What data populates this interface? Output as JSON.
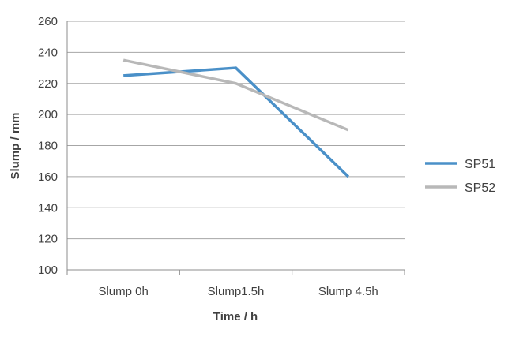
{
  "chart_data": {
    "type": "line",
    "title": "",
    "xlabel": "Time  / h",
    "ylabel": "Slump /  mm",
    "categories": [
      "Slump 0h",
      "Slump1.5h",
      "Slump 4.5h"
    ],
    "ylim": [
      100,
      260
    ],
    "yticks": [
      100,
      120,
      140,
      160,
      180,
      200,
      220,
      240,
      260
    ],
    "grid": true,
    "legend_position": "right",
    "series": [
      {
        "name": "SP51",
        "values": [
          225,
          230,
          160
        ],
        "color": "#4a90c8"
      },
      {
        "name": "SP52",
        "values": [
          235,
          220,
          190
        ],
        "color": "#b8b8b8"
      }
    ]
  }
}
